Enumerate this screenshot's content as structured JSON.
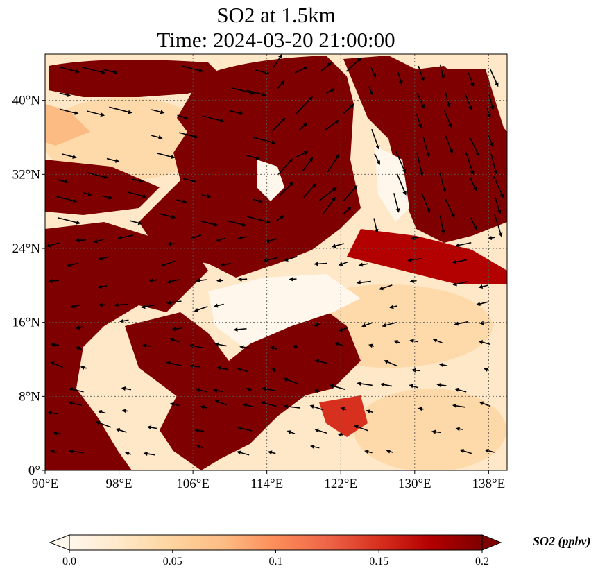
{
  "title_line1": "SO2 at 1.5km",
  "title_line2": "Time: 2024-03-20 21:00:00",
  "chart_data": {
    "type": "heatmap",
    "variable": "SO2",
    "level": "1.5km",
    "time": "2024-03-20 21:00:00",
    "lon_range": [
      90,
      140
    ],
    "lat_range": [
      0,
      45
    ],
    "x_ticks": [
      90,
      98,
      106,
      114,
      122,
      130,
      138
    ],
    "x_tick_labels": [
      "90°E",
      "98°E",
      "106°E",
      "114°E",
      "122°E",
      "130°E",
      "138°E"
    ],
    "y_ticks": [
      0,
      8,
      16,
      24,
      32,
      40
    ],
    "y_tick_labels": [
      "0°",
      "8°N",
      "16°N",
      "24°N",
      "32°N",
      "40°N"
    ],
    "grid": true,
    "overlay": "wind vectors",
    "colorbar": {
      "label": "SO2 (ppbv)",
      "range": [
        0,
        0.2
      ],
      "ticks": [
        0,
        0.05,
        0.1,
        0.15,
        0.2
      ],
      "tick_labels": [
        "0.0",
        "0.05",
        "0.1",
        "0.15",
        "0.2"
      ],
      "extend": "both",
      "colormap": [
        "#fff7ec",
        "#fee8c8",
        "#fdd49e",
        "#fdbb84",
        "#fc8d59",
        "#ef6548",
        "#d7301f",
        "#b30000",
        "#7f0000"
      ]
    }
  }
}
